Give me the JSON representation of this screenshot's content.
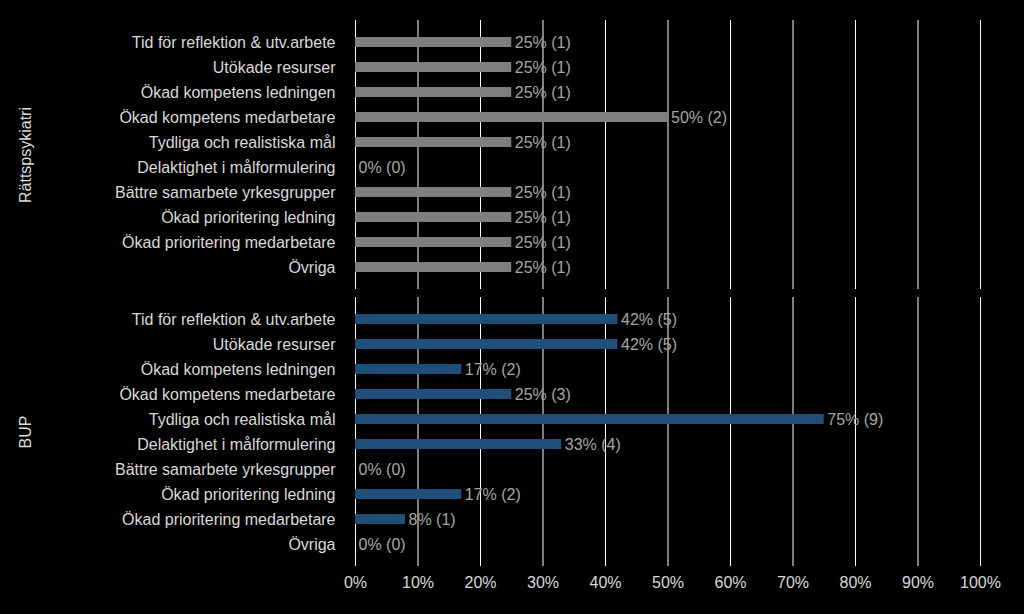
{
  "chart_data": {
    "type": "bar",
    "orientation": "horizontal",
    "grid": true,
    "data_labels": true,
    "categories": [
      "Tid för reflektion & utv.arbete",
      "Utökade resurser",
      "Ökad kompetens ledningen",
      "Ökad kompetens medarbetare",
      "Tydliga och realistiska mål",
      "Delaktighet i målformulering",
      "Bättre samarbete yrkesgrupper",
      "Ökad prioritering ledning",
      "Ökad prioritering medarbetare",
      "Övriga"
    ],
    "series": [
      {
        "name": "Rättspsykiatri",
        "color": "#7f7f7f",
        "values": [
          25,
          25,
          25,
          50,
          25,
          0,
          25,
          25,
          25,
          25
        ],
        "value_labels": [
          "25% (1)",
          "25% (1)",
          "25% (1)",
          "50% (2)",
          "25% (1)",
          "0% (0)",
          "25% (1)",
          "25% (1)",
          "25% (1)",
          "25% (1)"
        ]
      },
      {
        "name": "BUP",
        "color": "#1f4e79",
        "values": [
          42,
          42,
          17,
          25,
          75,
          33,
          0,
          17,
          8,
          0
        ],
        "value_labels": [
          "42% (5)",
          "42% (5)",
          "17% (2)",
          "25% (3)",
          "75% (9)",
          "33% (4)",
          "0% (0)",
          "17% (2)",
          "8% (1)",
          "0% (0)"
        ]
      }
    ],
    "xlim": [
      0,
      100
    ],
    "xticks": [
      {
        "value": 0,
        "label": "0%"
      },
      {
        "value": 10,
        "label": "10%"
      },
      {
        "value": 20,
        "label": "20%"
      },
      {
        "value": 30,
        "label": "30%"
      },
      {
        "value": 40,
        "label": "40%"
      },
      {
        "value": 50,
        "label": "50%"
      },
      {
        "value": 60,
        "label": "60%"
      },
      {
        "value": 70,
        "label": "70%"
      },
      {
        "value": 80,
        "label": "80%"
      },
      {
        "value": 90,
        "label": "90%"
      },
      {
        "value": 100,
        "label": "100%"
      }
    ]
  }
}
